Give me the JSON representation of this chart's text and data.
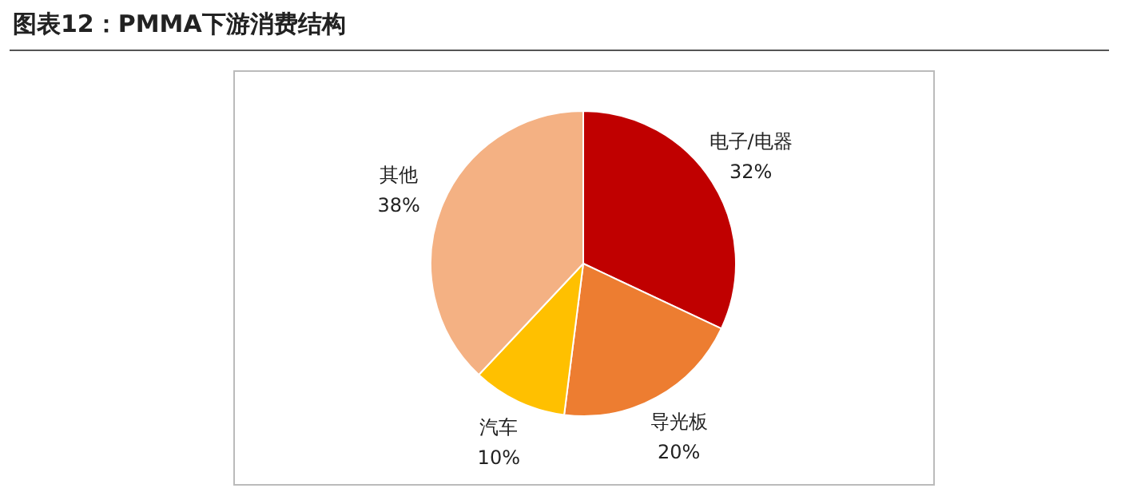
{
  "chart_data": {
    "type": "pie",
    "title": "图表12：PMMA下游消费结构",
    "categories": [
      "电子/电器",
      "导光板",
      "汽车",
      "其他"
    ],
    "values": [
      32,
      20,
      10,
      38
    ],
    "colors": [
      "#c00000",
      "#ed7d31",
      "#ffc000",
      "#f4b183"
    ],
    "value_labels": [
      "32%",
      "20%",
      "10%",
      "38%"
    ],
    "legend": false
  }
}
